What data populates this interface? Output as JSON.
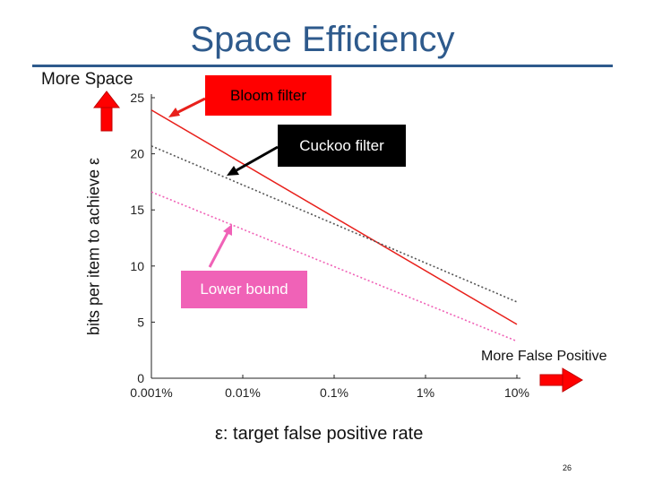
{
  "slide": {
    "title": "Space Efficiency",
    "more_space_label": "More Space",
    "more_false_positive_label": "More False Positive",
    "page_number": "26"
  },
  "callouts": {
    "bloom": "Bloom filter",
    "cuckoo": "Cuckoo filter",
    "lower_bound": "Lower bound"
  },
  "colors": {
    "title": "#2e5a8c",
    "bloom": "#e8201b",
    "cuckoo": "#555555",
    "lower_bound": "#f062b7",
    "arrow_red": "#ff0000"
  },
  "chart_data": {
    "type": "line",
    "title": "",
    "xlabel": "ε: target false positive rate",
    "ylabel": "bits per item to achieve ε",
    "x_scale": "log",
    "x": [
      0.001,
      0.01,
      0.1,
      1,
      10
    ],
    "x_tick_labels": [
      "0.001%",
      "0.01%",
      "0.1%",
      "1%",
      "10%"
    ],
    "y_ticks": [
      0,
      5,
      10,
      15,
      20,
      25
    ],
    "ylim": [
      0,
      25
    ],
    "grid": false,
    "series": [
      {
        "name": "Bloom filter",
        "style": "solid",
        "x": [
          0.001,
          10
        ],
        "y": [
          23.9,
          4.8
        ]
      },
      {
        "name": "Cuckoo filter",
        "style": "dotted",
        "x": [
          0.001,
          10
        ],
        "y": [
          20.7,
          6.8
        ]
      },
      {
        "name": "Lower bound",
        "style": "dotted",
        "x": [
          0.001,
          10
        ],
        "y": [
          16.6,
          3.3
        ]
      }
    ]
  }
}
